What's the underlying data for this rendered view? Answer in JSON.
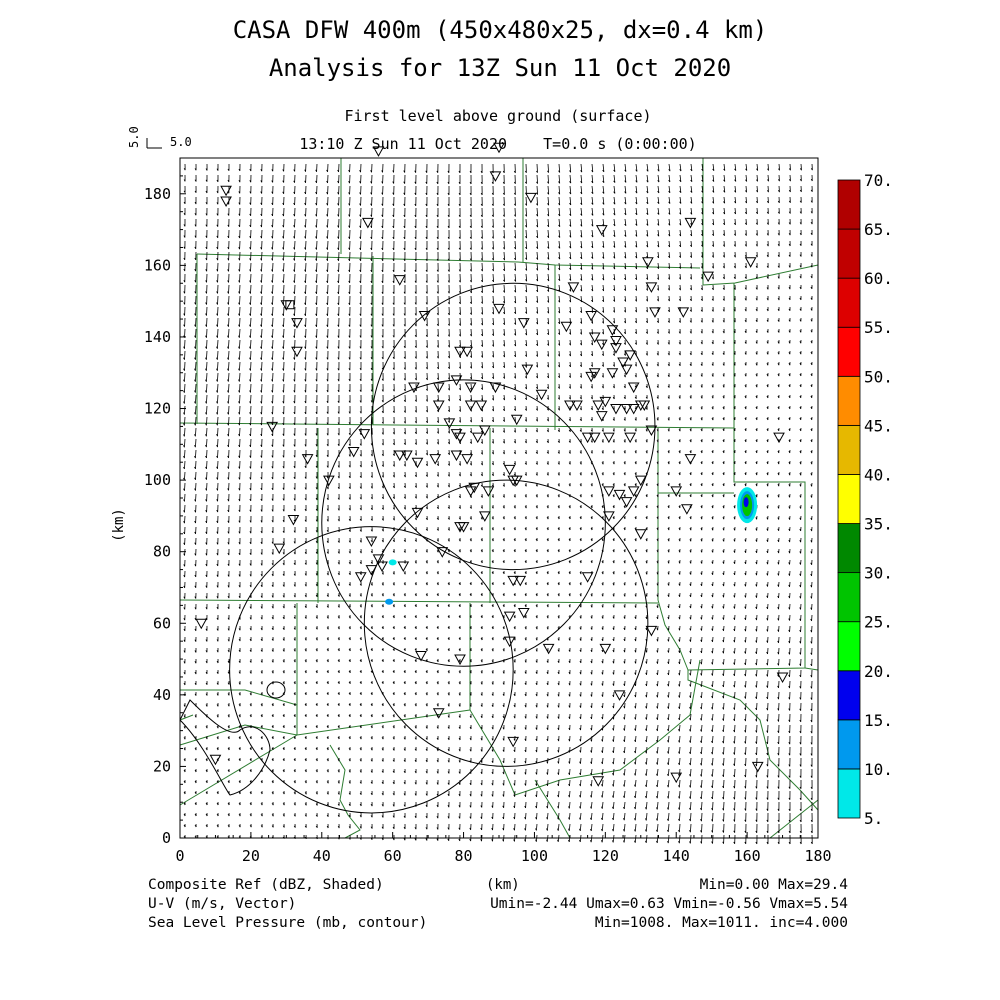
{
  "title": "CASA DFW 400m (450x480x25, dx=0.4 km)",
  "subtitle": "Analysis for 13Z Sun 11 Oct 2020",
  "level_label": "First level above ground (surface)",
  "time_label": "13:10 Z Sun 11 Oct 2020    T=0.0 s (0:00:00)",
  "ref_vector": {
    "u_label": "5.0",
    "v_label": "5.0"
  },
  "footer": {
    "line1_left": "Composite Ref (dBZ, Shaded)",
    "line1_right": "Min=0.00 Max=29.4",
    "line2_left": "U-V (m/s, Vector)",
    "line2_right": "Umin=-2.44 Umax=0.63 Vmin=-0.56 Vmax=5.54",
    "line3_left": "Sea Level Pressure (mb, contour)",
    "line3_right": "Min=1008. Max=1011. inc=4.000"
  },
  "colors": {
    "boundary": "#2e7d32",
    "frame": "#000000"
  },
  "chart_data": {
    "type": "heatmap",
    "xlabel": "(km)",
    "ylabel": "(km)",
    "xlim": [
      0,
      180
    ],
    "ylim": [
      0,
      190
    ],
    "xticks": [
      0,
      20,
      40,
      60,
      80,
      100,
      120,
      140,
      160,
      180
    ],
    "yticks": [
      0,
      20,
      40,
      60,
      80,
      100,
      120,
      140,
      160,
      180
    ],
    "colorbar": {
      "levels": [
        5,
        10,
        15,
        20,
        25,
        30,
        35,
        40,
        45,
        50,
        55,
        60,
        65,
        70
      ],
      "labels": [
        "5.",
        "10.",
        "15.",
        "20.",
        "25.",
        "30.",
        "35.",
        "40.",
        "45.",
        "50.",
        "55.",
        "60.",
        "65.",
        "70."
      ],
      "colors": [
        "#00e8e8",
        "#0099ee",
        "#0000ee",
        "#00ff00",
        "#00c400",
        "#008800",
        "#ffff00",
        "#e6b800",
        "#ff8c00",
        "#ff0000",
        "#dd0000",
        "#c00000",
        "#b00000",
        "#ff00ff"
      ]
    },
    "radar_rings": [
      {
        "center": [
          94,
          115
        ],
        "radius": 40
      },
      {
        "center": [
          80,
          88
        ],
        "radius": 40
      },
      {
        "center": [
          92,
          60
        ],
        "radius": 40
      },
      {
        "center": [
          54,
          47
        ],
        "radius": 40
      }
    ],
    "radar_site": [
      31,
      149
    ],
    "echoes": [
      {
        "x": 160,
        "y": 93,
        "max_dbz": 29.4
      },
      {
        "x": 59,
        "y": 66,
        "max_dbz": 10
      },
      {
        "x": 60,
        "y": 77,
        "max_dbz": 6
      }
    ],
    "stations": [
      [
        56,
        192
      ],
      [
        90,
        193
      ],
      [
        89,
        185
      ],
      [
        13,
        181
      ],
      [
        13,
        178
      ],
      [
        99,
        179
      ],
      [
        53,
        172
      ],
      [
        119,
        170
      ],
      [
        144,
        172
      ],
      [
        62,
        156
      ],
      [
        132,
        161
      ],
      [
        161,
        161
      ],
      [
        149,
        157
      ],
      [
        133,
        154
      ],
      [
        111,
        154
      ],
      [
        90,
        148
      ],
      [
        134,
        147
      ],
      [
        142,
        147
      ],
      [
        69,
        146
      ],
      [
        30,
        149
      ],
      [
        33,
        144
      ],
      [
        97,
        144
      ],
      [
        109,
        143
      ],
      [
        116,
        146
      ],
      [
        117,
        140
      ],
      [
        122,
        142
      ],
      [
        123,
        139
      ],
      [
        119,
        138
      ],
      [
        127,
        135
      ],
      [
        125,
        133
      ],
      [
        123,
        137
      ],
      [
        122,
        130
      ],
      [
        116,
        129
      ],
      [
        117,
        130
      ],
      [
        79,
        136
      ],
      [
        81,
        136
      ],
      [
        98,
        131
      ],
      [
        126,
        131
      ],
      [
        128,
        126
      ],
      [
        33,
        136
      ],
      [
        82,
        126
      ],
      [
        78,
        128
      ],
      [
        66,
        126
      ],
      [
        73,
        121
      ],
      [
        73,
        126
      ],
      [
        82,
        121
      ],
      [
        89,
        126
      ],
      [
        85,
        121
      ],
      [
        102,
        124
      ],
      [
        110,
        121
      ],
      [
        120,
        122
      ],
      [
        118,
        121
      ],
      [
        123,
        120
      ],
      [
        128,
        120
      ],
      [
        130,
        121
      ],
      [
        131,
        121
      ],
      [
        126,
        120
      ],
      [
        119,
        118
      ],
      [
        112,
        121
      ],
      [
        127,
        112
      ],
      [
        95,
        117
      ],
      [
        84,
        112
      ],
      [
        78,
        113
      ],
      [
        76,
        116
      ],
      [
        52,
        113
      ],
      [
        79,
        112
      ],
      [
        86,
        114
      ],
      [
        26,
        115
      ],
      [
        36,
        106
      ],
      [
        62,
        107
      ],
      [
        64,
        107
      ],
      [
        72,
        106
      ],
      [
        78,
        107
      ],
      [
        81,
        106
      ],
      [
        67,
        105
      ],
      [
        115,
        112
      ],
      [
        117,
        112
      ],
      [
        121,
        112
      ],
      [
        133,
        114
      ],
      [
        144,
        106
      ],
      [
        169,
        112
      ],
      [
        49,
        108
      ],
      [
        42,
        100
      ],
      [
        82,
        97
      ],
      [
        83,
        98
      ],
      [
        87,
        97
      ],
      [
        93,
        103
      ],
      [
        95,
        100
      ],
      [
        94,
        100
      ],
      [
        121,
        97
      ],
      [
        124,
        96
      ],
      [
        126,
        94
      ],
      [
        128,
        97
      ],
      [
        130,
        100
      ],
      [
        140,
        97
      ],
      [
        143,
        92
      ],
      [
        67,
        91
      ],
      [
        79,
        87
      ],
      [
        80,
        87
      ],
      [
        86,
        90
      ],
      [
        121,
        90
      ],
      [
        130,
        85
      ],
      [
        32,
        89
      ],
      [
        54,
        83
      ],
      [
        28,
        81
      ],
      [
        56,
        78
      ],
      [
        54,
        75
      ],
      [
        57,
        76
      ],
      [
        74,
        80
      ],
      [
        63,
        76
      ],
      [
        51,
        73
      ],
      [
        115,
        73
      ],
      [
        94,
        72
      ],
      [
        96,
        72
      ],
      [
        93,
        62
      ],
      [
        97,
        63
      ],
      [
        133,
        58
      ],
      [
        93,
        55
      ],
      [
        104,
        53
      ],
      [
        68,
        51
      ],
      [
        79,
        50
      ],
      [
        120,
        53
      ],
      [
        6,
        60
      ],
      [
        124,
        40
      ],
      [
        73,
        35
      ],
      [
        170,
        45
      ],
      [
        94,
        27
      ],
      [
        163,
        20
      ],
      [
        118,
        16
      ],
      [
        140,
        17
      ],
      [
        10,
        22
      ]
    ]
  }
}
